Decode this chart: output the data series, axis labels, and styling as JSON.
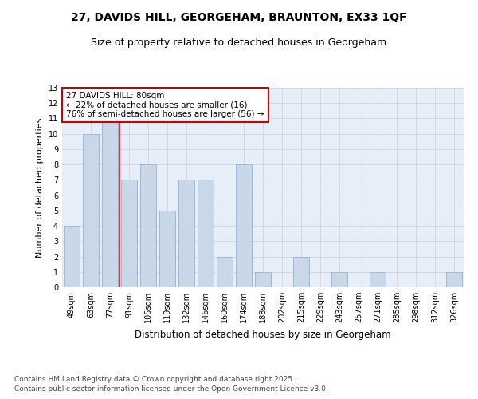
{
  "title1": "27, DAVIDS HILL, GEORGEHAM, BRAUNTON, EX33 1QF",
  "title2": "Size of property relative to detached houses in Georgeham",
  "xlabel": "Distribution of detached houses by size in Georgeham",
  "ylabel": "Number of detached properties",
  "categories": [
    "49sqm",
    "63sqm",
    "77sqm",
    "91sqm",
    "105sqm",
    "119sqm",
    "132sqm",
    "146sqm",
    "160sqm",
    "174sqm",
    "188sqm",
    "202sqm",
    "215sqm",
    "229sqm",
    "243sqm",
    "257sqm",
    "271sqm",
    "285sqm",
    "298sqm",
    "312sqm",
    "326sqm"
  ],
  "values": [
    4,
    10,
    11,
    7,
    8,
    5,
    7,
    7,
    2,
    8,
    1,
    0,
    2,
    0,
    1,
    0,
    1,
    0,
    0,
    0,
    1
  ],
  "bar_color": "#c8d8e8",
  "bar_edge_color": "#a0b8d0",
  "red_line_x": 2.5,
  "annotation_text": "27 DAVIDS HILL: 80sqm\n← 22% of detached houses are smaller (16)\n76% of semi-detached houses are larger (56) →",
  "annotation_box_color": "#ffffff",
  "annotation_box_edge": "#cc0000",
  "grid_color": "#d0d8e8",
  "bg_color": "#e8eef8",
  "ylim": [
    0,
    13
  ],
  "yticks": [
    0,
    1,
    2,
    3,
    4,
    5,
    6,
    7,
    8,
    9,
    10,
    11,
    12,
    13
  ],
  "footer1": "Contains HM Land Registry data © Crown copyright and database right 2025.",
  "footer2": "Contains public sector information licensed under the Open Government Licence v3.0.",
  "title1_fontsize": 10,
  "title2_fontsize": 9,
  "xlabel_fontsize": 8.5,
  "ylabel_fontsize": 8,
  "tick_fontsize": 7,
  "annotation_fontsize": 7.5,
  "footer_fontsize": 6.5
}
